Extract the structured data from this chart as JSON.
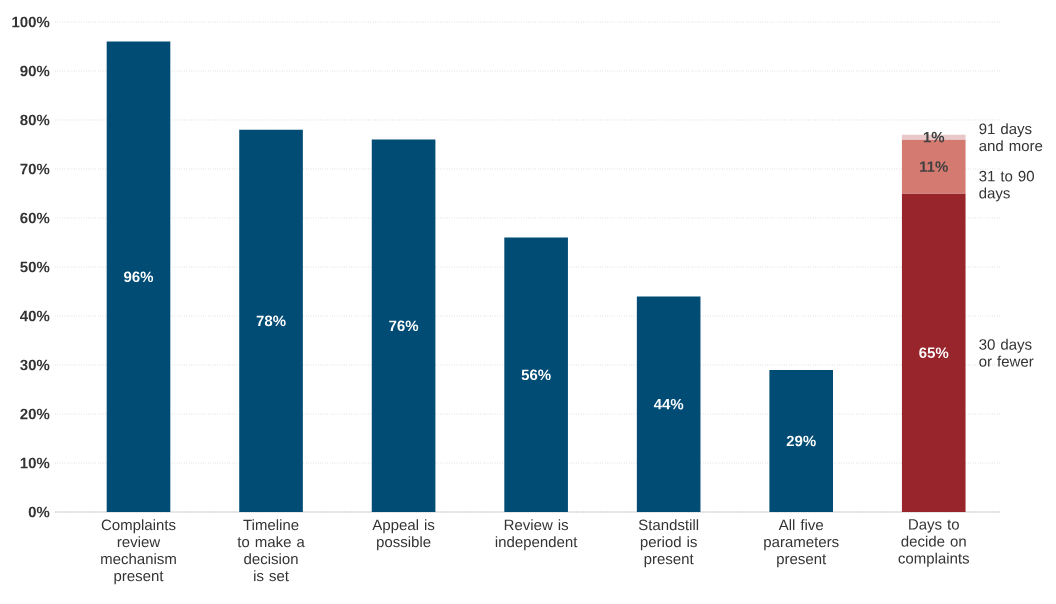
{
  "chart_data": {
    "type": "bar",
    "stacked": true,
    "grid": "y",
    "categories": [
      "Complaints review mechanism present",
      "Timeline to make a decision is set",
      "Appeal is possible",
      "Review is independent",
      "Standstill period is present",
      "All five parameters present",
      "Days to decide on complaints"
    ],
    "ylim": [
      0,
      100
    ],
    "yticks": [
      {
        "value": 0,
        "label": "0%"
      },
      {
        "value": 10,
        "label": "10%"
      },
      {
        "value": 20,
        "label": "20%"
      },
      {
        "value": 30,
        "label": "30%"
      },
      {
        "value": 40,
        "label": "40%"
      },
      {
        "value": 50,
        "label": "50%"
      },
      {
        "value": 60,
        "label": "60%"
      },
      {
        "value": 70,
        "label": "70%"
      },
      {
        "value": 80,
        "label": "80%"
      },
      {
        "value": 90,
        "label": "90%"
      },
      {
        "value": 100,
        "label": "100%"
      }
    ],
    "series": [
      {
        "color": "#004c75",
        "values": [
          96,
          78,
          76,
          56,
          44,
          29,
          null
        ],
        "value_labels": [
          "96%",
          "78%",
          "76%",
          "56%",
          "44%",
          "29%",
          null
        ]
      },
      {
        "name": "30 days or fewer",
        "color": "#98242c",
        "values": [
          null,
          null,
          null,
          null,
          null,
          null,
          65
        ],
        "value_labels": [
          null,
          null,
          null,
          null,
          null,
          null,
          "65%"
        ]
      },
      {
        "name": "31 to 90 days",
        "color": "#d47a70",
        "values": [
          null,
          null,
          null,
          null,
          null,
          null,
          11
        ],
        "value_labels": [
          null,
          null,
          null,
          null,
          null,
          null,
          "11%"
        ]
      },
      {
        "name": "91 days and more",
        "color": "#e8c8c8",
        "values": [
          null,
          null,
          null,
          null,
          null,
          null,
          1
        ],
        "value_labels": [
          null,
          null,
          null,
          null,
          null,
          null,
          "1%"
        ]
      }
    ]
  }
}
